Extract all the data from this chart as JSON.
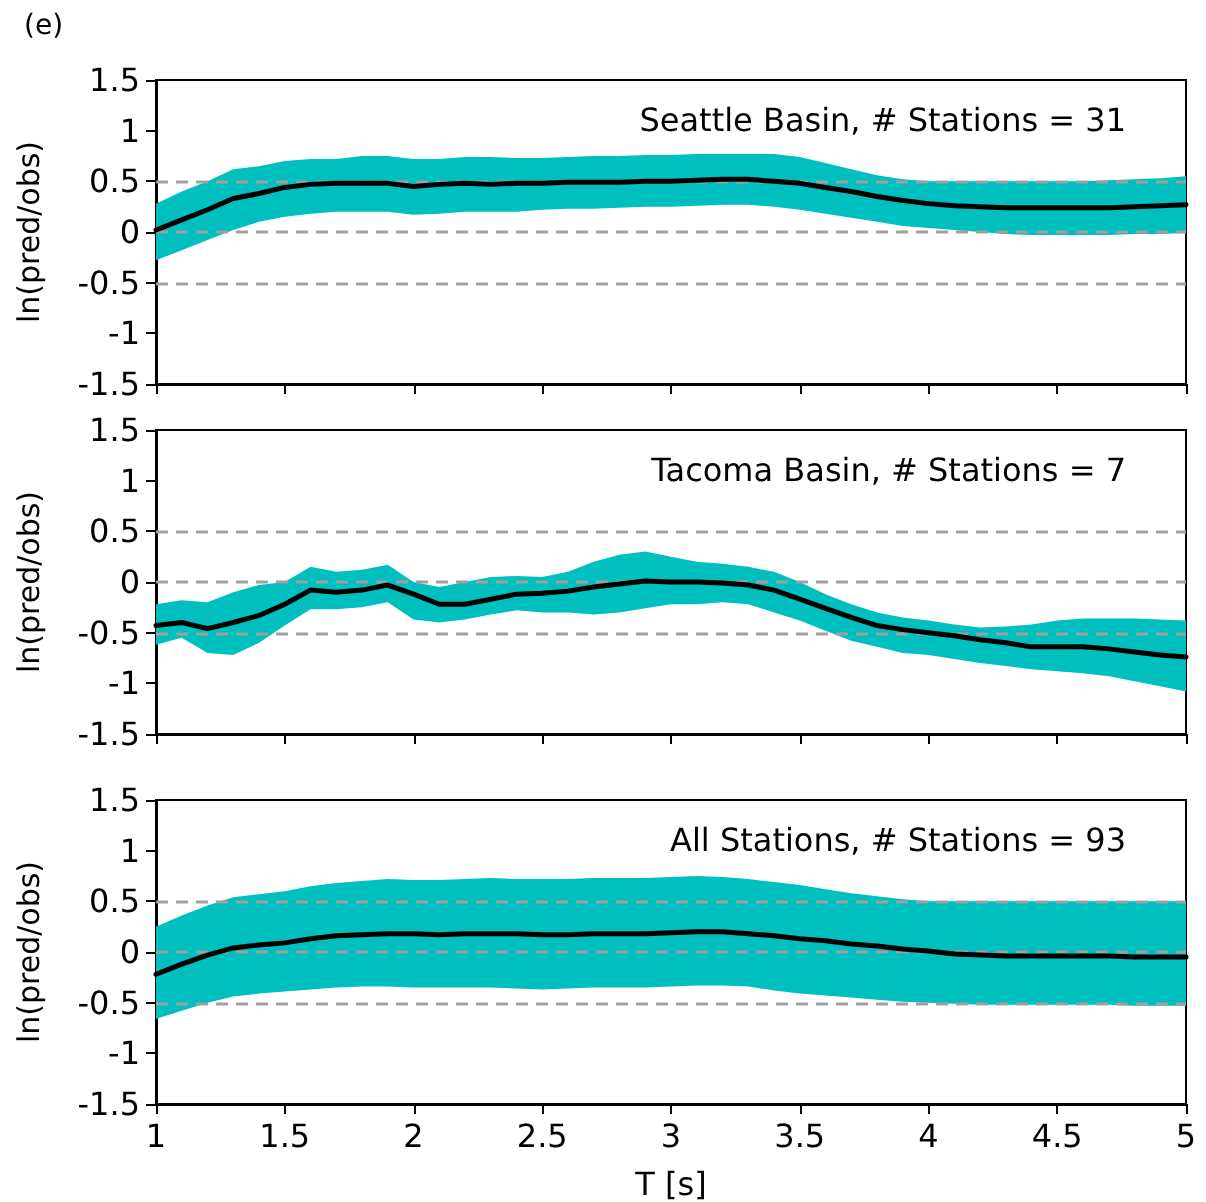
{
  "chart_data": [
    {
      "type": "line",
      "title": "(e)",
      "ylabel": "ln(pred/obs)",
      "annotations": [
        "Seattle Basin, # Stations = 31"
      ],
      "xlim": [
        1,
        5
      ],
      "xticks": [
        1,
        1.5,
        2,
        2.5,
        3,
        3.5,
        4,
        4.5,
        5
      ],
      "ylim": [
        -1.5,
        1.5
      ],
      "yticks": [
        -1.5,
        -1,
        -0.5,
        0,
        0.5,
        1,
        1.5
      ],
      "tick_labels": "y",
      "x": [
        1.0,
        1.1,
        1.2,
        1.3,
        1.4,
        1.5,
        1.6,
        1.7,
        1.8,
        1.9,
        2.0,
        2.1,
        2.2,
        2.3,
        2.4,
        2.5,
        2.6,
        2.7,
        2.8,
        2.9,
        3.0,
        3.1,
        3.2,
        3.3,
        3.4,
        3.5,
        3.6,
        3.7,
        3.8,
        3.9,
        4.0,
        4.1,
        4.2,
        4.3,
        4.4,
        4.5,
        4.6,
        4.7,
        4.8,
        4.9,
        5.0
      ],
      "series": [
        {
          "color": "#000000",
          "values": [
            0.02,
            0.12,
            0.22,
            0.33,
            0.38,
            0.44,
            0.47,
            0.48,
            0.48,
            0.48,
            0.45,
            0.47,
            0.48,
            0.47,
            0.48,
            0.48,
            0.49,
            0.49,
            0.49,
            0.5,
            0.5,
            0.51,
            0.52,
            0.52,
            0.5,
            0.48,
            0.44,
            0.4,
            0.35,
            0.31,
            0.28,
            0.26,
            0.25,
            0.24,
            0.24,
            0.24,
            0.24,
            0.24,
            0.25,
            0.26,
            0.27
          ],
          "upper": [
            0.28,
            0.4,
            0.5,
            0.62,
            0.65,
            0.7,
            0.72,
            0.72,
            0.75,
            0.75,
            0.72,
            0.72,
            0.74,
            0.74,
            0.73,
            0.73,
            0.74,
            0.75,
            0.75,
            0.76,
            0.76,
            0.77,
            0.77,
            0.77,
            0.77,
            0.74,
            0.68,
            0.62,
            0.56,
            0.52,
            0.5,
            0.5,
            0.5,
            0.5,
            0.5,
            0.5,
            0.5,
            0.51,
            0.52,
            0.53,
            0.55
          ],
          "lower": [
            -0.28,
            -0.18,
            -0.08,
            0.02,
            0.1,
            0.15,
            0.18,
            0.2,
            0.2,
            0.2,
            0.17,
            0.18,
            0.2,
            0.2,
            0.2,
            0.22,
            0.23,
            0.23,
            0.24,
            0.25,
            0.25,
            0.26,
            0.27,
            0.27,
            0.25,
            0.22,
            0.18,
            0.14,
            0.1,
            0.06,
            0.04,
            0.02,
            0.0,
            -0.02,
            -0.03,
            -0.03,
            -0.03,
            -0.03,
            -0.02,
            -0.02,
            -0.01
          ]
        }
      ],
      "ref_lines": [
        {
          "axis": "y",
          "value": 0.5,
          "color": "#a0a0a0",
          "line_style": "dashed"
        },
        {
          "axis": "y",
          "value": 0,
          "color": "#a0a0a0",
          "line_style": "dashed"
        },
        {
          "axis": "y",
          "value": -0.5,
          "color": "#a0a0a0",
          "line_style": "dashed"
        }
      ]
    },
    {
      "type": "line",
      "ylabel": "ln(pred/obs)",
      "annotations": [
        "Tacoma Basin, # Stations = 7"
      ],
      "xlim": [
        1,
        5
      ],
      "xticks": [
        1,
        1.5,
        2,
        2.5,
        3,
        3.5,
        4,
        4.5,
        5
      ],
      "ylim": [
        -1.5,
        1.5
      ],
      "yticks": [
        -1.5,
        -1,
        -0.5,
        0,
        0.5,
        1,
        1.5
      ],
      "tick_labels": "y",
      "x": [
        1.0,
        1.1,
        1.2,
        1.3,
        1.4,
        1.5,
        1.6,
        1.7,
        1.8,
        1.9,
        2.0,
        2.1,
        2.2,
        2.3,
        2.4,
        2.5,
        2.6,
        2.7,
        2.8,
        2.9,
        3.0,
        3.1,
        3.2,
        3.3,
        3.4,
        3.5,
        3.6,
        3.7,
        3.8,
        3.9,
        4.0,
        4.1,
        4.2,
        4.3,
        4.4,
        4.5,
        4.6,
        4.7,
        4.8,
        4.9,
        5.0
      ],
      "series": [
        {
          "color": "#000000",
          "values": [
            -0.43,
            -0.4,
            -0.46,
            -0.4,
            -0.33,
            -0.22,
            -0.08,
            -0.1,
            -0.08,
            -0.03,
            -0.12,
            -0.22,
            -0.22,
            -0.17,
            -0.12,
            -0.11,
            -0.09,
            -0.05,
            -0.02,
            0.01,
            0.0,
            0.0,
            -0.01,
            -0.03,
            -0.08,
            -0.17,
            -0.26,
            -0.35,
            -0.43,
            -0.47,
            -0.5,
            -0.53,
            -0.57,
            -0.6,
            -0.64,
            -0.64,
            -0.64,
            -0.66,
            -0.69,
            -0.72,
            -0.74
          ],
          "upper": [
            -0.22,
            -0.18,
            -0.2,
            -0.1,
            -0.03,
            0.0,
            0.15,
            0.1,
            0.12,
            0.17,
            0.0,
            -0.05,
            0.0,
            0.05,
            0.06,
            0.05,
            0.1,
            0.2,
            0.27,
            0.3,
            0.25,
            0.2,
            0.18,
            0.15,
            0.1,
            0.0,
            -0.12,
            -0.22,
            -0.3,
            -0.35,
            -0.38,
            -0.42,
            -0.45,
            -0.44,
            -0.42,
            -0.38,
            -0.36,
            -0.36,
            -0.36,
            -0.37,
            -0.38
          ],
          "lower": [
            -0.62,
            -0.55,
            -0.7,
            -0.72,
            -0.6,
            -0.43,
            -0.27,
            -0.27,
            -0.25,
            -0.2,
            -0.37,
            -0.4,
            -0.37,
            -0.32,
            -0.28,
            -0.3,
            -0.3,
            -0.32,
            -0.3,
            -0.26,
            -0.22,
            -0.22,
            -0.2,
            -0.22,
            -0.3,
            -0.38,
            -0.48,
            -0.58,
            -0.64,
            -0.7,
            -0.72,
            -0.76,
            -0.8,
            -0.83,
            -0.86,
            -0.88,
            -0.9,
            -0.93,
            -0.98,
            -1.03,
            -1.08
          ]
        }
      ],
      "ref_lines": [
        {
          "axis": "y",
          "value": 0.5,
          "color": "#a0a0a0",
          "line_style": "dashed"
        },
        {
          "axis": "y",
          "value": 0,
          "color": "#a0a0a0",
          "line_style": "dashed"
        },
        {
          "axis": "y",
          "value": -0.5,
          "color": "#a0a0a0",
          "line_style": "dashed"
        }
      ]
    },
    {
      "type": "line",
      "xlabel": "T [s]",
      "ylabel": "ln(pred/obs)",
      "annotations": [
        "All Stations, # Stations = 93"
      ],
      "xlim": [
        1,
        5
      ],
      "xticks": [
        1,
        1.5,
        2,
        2.5,
        3,
        3.5,
        4,
        4.5,
        5
      ],
      "ylim": [
        -1.5,
        1.5
      ],
      "yticks": [
        -1.5,
        -1,
        -0.5,
        0,
        0.5,
        1,
        1.5
      ],
      "x": [
        1.0,
        1.1,
        1.2,
        1.3,
        1.4,
        1.5,
        1.6,
        1.7,
        1.8,
        1.9,
        2.0,
        2.1,
        2.2,
        2.3,
        2.4,
        2.5,
        2.6,
        2.7,
        2.8,
        2.9,
        3.0,
        3.1,
        3.2,
        3.3,
        3.4,
        3.5,
        3.6,
        3.7,
        3.8,
        3.9,
        4.0,
        4.1,
        4.2,
        4.3,
        4.4,
        4.5,
        4.6,
        4.7,
        4.8,
        4.9,
        5.0
      ],
      "series": [
        {
          "color": "#000000",
          "values": [
            -0.22,
            -0.12,
            -0.03,
            0.04,
            0.07,
            0.09,
            0.13,
            0.16,
            0.17,
            0.18,
            0.18,
            0.17,
            0.18,
            0.18,
            0.18,
            0.17,
            0.17,
            0.18,
            0.18,
            0.18,
            0.19,
            0.2,
            0.2,
            0.18,
            0.16,
            0.13,
            0.11,
            0.08,
            0.06,
            0.03,
            0.01,
            -0.02,
            -0.03,
            -0.04,
            -0.04,
            -0.04,
            -0.04,
            -0.04,
            -0.05,
            -0.05,
            -0.05
          ],
          "upper": [
            0.25,
            0.36,
            0.46,
            0.54,
            0.57,
            0.6,
            0.65,
            0.68,
            0.7,
            0.72,
            0.71,
            0.71,
            0.72,
            0.73,
            0.72,
            0.72,
            0.72,
            0.73,
            0.73,
            0.73,
            0.74,
            0.75,
            0.74,
            0.72,
            0.69,
            0.66,
            0.62,
            0.58,
            0.55,
            0.52,
            0.5,
            0.5,
            0.5,
            0.5,
            0.5,
            0.5,
            0.5,
            0.5,
            0.5,
            0.5,
            0.5
          ],
          "lower": [
            -0.66,
            -0.58,
            -0.5,
            -0.44,
            -0.41,
            -0.39,
            -0.37,
            -0.35,
            -0.34,
            -0.34,
            -0.35,
            -0.35,
            -0.35,
            -0.35,
            -0.36,
            -0.37,
            -0.36,
            -0.35,
            -0.35,
            -0.35,
            -0.34,
            -0.33,
            -0.33,
            -0.34,
            -0.38,
            -0.41,
            -0.43,
            -0.45,
            -0.47,
            -0.49,
            -0.5,
            -0.51,
            -0.52,
            -0.52,
            -0.52,
            -0.52,
            -0.52,
            -0.52,
            -0.53,
            -0.53,
            -0.53
          ]
        }
      ],
      "ref_lines": [
        {
          "axis": "y",
          "value": 0.5,
          "color": "#a0a0a0",
          "line_style": "dashed"
        },
        {
          "axis": "y",
          "value": 0,
          "color": "#a0a0a0",
          "line_style": "dashed"
        },
        {
          "axis": "y",
          "value": -0.5,
          "color": "#a0a0a0",
          "line_style": "dashed"
        }
      ]
    }
  ]
}
